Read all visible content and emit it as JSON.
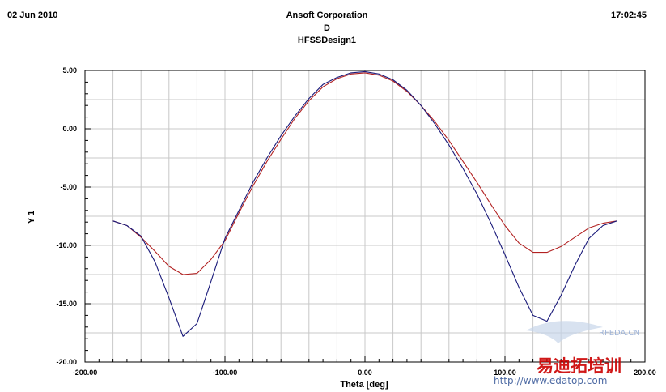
{
  "header": {
    "date": "02 Jun 2010",
    "company": "Ansoft Corporation",
    "subtitle": "D",
    "design": "HFSSDesign1",
    "time": "17:02:45"
  },
  "watermark": {
    "site": "RFEDA.CN",
    "brand": "易迪拓培训",
    "url": "http://www.edatop.com"
  },
  "colors": {
    "series_red": "#b22222",
    "series_blue": "#1a1a7a",
    "grid": "#c8c8c8",
    "brand": "#cc0000"
  },
  "chart_data": {
    "type": "line",
    "xlabel": "Theta [deg]",
    "ylabel": "Y 1",
    "xlim": [
      -200,
      200
    ],
    "ylim": [
      -20,
      5
    ],
    "x_ticks": [
      -200,
      -100,
      0,
      100,
      200
    ],
    "x_tick_labels": [
      "-200.00",
      "-100.00",
      "0.00",
      "100.00",
      "200.00"
    ],
    "y_ticks": [
      5,
      0,
      -5,
      -10,
      -15,
      -20
    ],
    "y_tick_labels": [
      "5.00",
      "0.00",
      "-5.00",
      "-10.00",
      "-15.00",
      "-20.00"
    ],
    "grid": true,
    "series": [
      {
        "color": "#b22222",
        "x": [
          -180,
          -170,
          -160,
          -150,
          -140,
          -130,
          -120,
          -110,
          -100,
          -90,
          -80,
          -70,
          -60,
          -50,
          -40,
          -30,
          -20,
          -10,
          0,
          10,
          20,
          30,
          40,
          50,
          60,
          70,
          80,
          90,
          100,
          110,
          120,
          130,
          140,
          150,
          160,
          170,
          180
        ],
        "y": [
          -7.9,
          -8.3,
          -9.3,
          -10.5,
          -11.8,
          -12.5,
          -12.4,
          -11.2,
          -9.6,
          -7.2,
          -4.9,
          -2.8,
          -0.9,
          0.9,
          2.4,
          3.6,
          4.3,
          4.7,
          4.8,
          4.6,
          4.1,
          3.2,
          2.0,
          0.6,
          -1.0,
          -2.8,
          -4.6,
          -6.5,
          -8.3,
          -9.8,
          -10.6,
          -10.6,
          -10.1,
          -9.3,
          -8.5,
          -8.1,
          -7.9
        ]
      },
      {
        "color": "#1a1a7a",
        "x": [
          -180,
          -170,
          -160,
          -150,
          -140,
          -130,
          -120,
          -110,
          -100,
          -90,
          -80,
          -70,
          -60,
          -50,
          -40,
          -30,
          -20,
          -10,
          0,
          10,
          20,
          30,
          40,
          50,
          60,
          70,
          80,
          90,
          100,
          110,
          120,
          130,
          140,
          150,
          160,
          170,
          180
        ],
        "y": [
          -7.9,
          -8.3,
          -9.2,
          -11.4,
          -14.5,
          -17.8,
          -16.7,
          -13.1,
          -9.4,
          -7.0,
          -4.6,
          -2.5,
          -0.6,
          1.1,
          2.6,
          3.8,
          4.4,
          4.8,
          4.9,
          4.7,
          4.2,
          3.3,
          2.0,
          0.4,
          -1.4,
          -3.4,
          -5.6,
          -8.1,
          -10.8,
          -13.6,
          -16.0,
          -16.5,
          -14.3,
          -11.7,
          -9.4,
          -8.3,
          -7.9
        ]
      }
    ]
  }
}
